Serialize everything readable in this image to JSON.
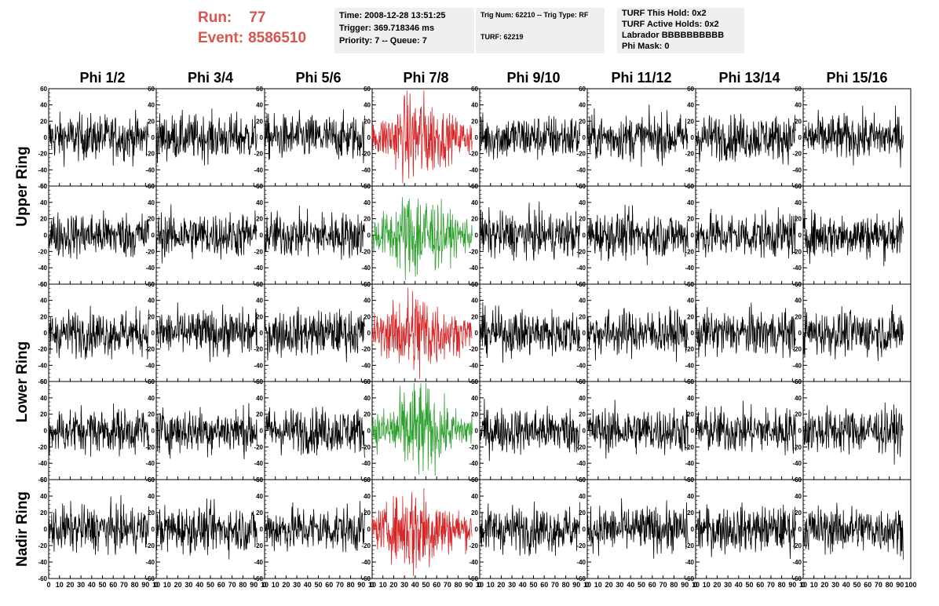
{
  "header": {
    "run_label": "Run:",
    "run_value": "77",
    "event_label": "Event:",
    "event_value": "8586510",
    "time_box": [
      "Time: 2008-12-28 13:51:25",
      "Trigger: 369.718346 ms",
      "Priority: 7 -- Queue: 7"
    ],
    "trig_box": [
      "Trig Num: 62210 -- Trig Type: RF",
      "",
      "TURF: 62219"
    ],
    "turf_box": [
      "TURF This Hold: 0x2",
      "TURF Active Holds: 0x2",
      "Labrador BBBBBBBBBB",
      "Phi Mask: 0"
    ]
  },
  "chart_data": {
    "type": "line",
    "columns": [
      "Phi 1/2",
      "Phi 3/4",
      "Phi 5/6",
      "Phi 7/8",
      "Phi 9/10",
      "Phi 11/12",
      "Phi 13/14",
      "Phi 15/16"
    ],
    "ring_labels": [
      "Upper Ring",
      "Lower Ring",
      "Nadir Ring"
    ],
    "rows": 5,
    "ylim": [
      -60,
      60
    ],
    "yticks": [
      -60,
      -40,
      -20,
      0,
      20,
      40,
      60
    ],
    "xlim": [
      0,
      100
    ],
    "xticks": [
      0,
      10,
      20,
      30,
      40,
      50,
      60,
      70,
      80,
      90,
      100
    ],
    "xtick_labels_visible": [
      "0",
      "10",
      "20",
      "30",
      "40",
      "50",
      "60",
      "70",
      "80",
      "90",
      "10"
    ],
    "xtick_labels_last_panel": [
      "0",
      "10",
      "20",
      "30",
      "40",
      "50",
      "60",
      "70",
      "80",
      "90",
      "100"
    ],
    "highlight_column": 3,
    "row_trace_colors": [
      "#d62728",
      "#2ca02c",
      "#d62728",
      "#2ca02c",
      "#d62728"
    ],
    "default_color": "#000000",
    "noise": {
      "points": 260,
      "x_range": [
        0,
        93
      ],
      "normal_amplitude": 14,
      "highlight_amplitude": 22
    }
  }
}
